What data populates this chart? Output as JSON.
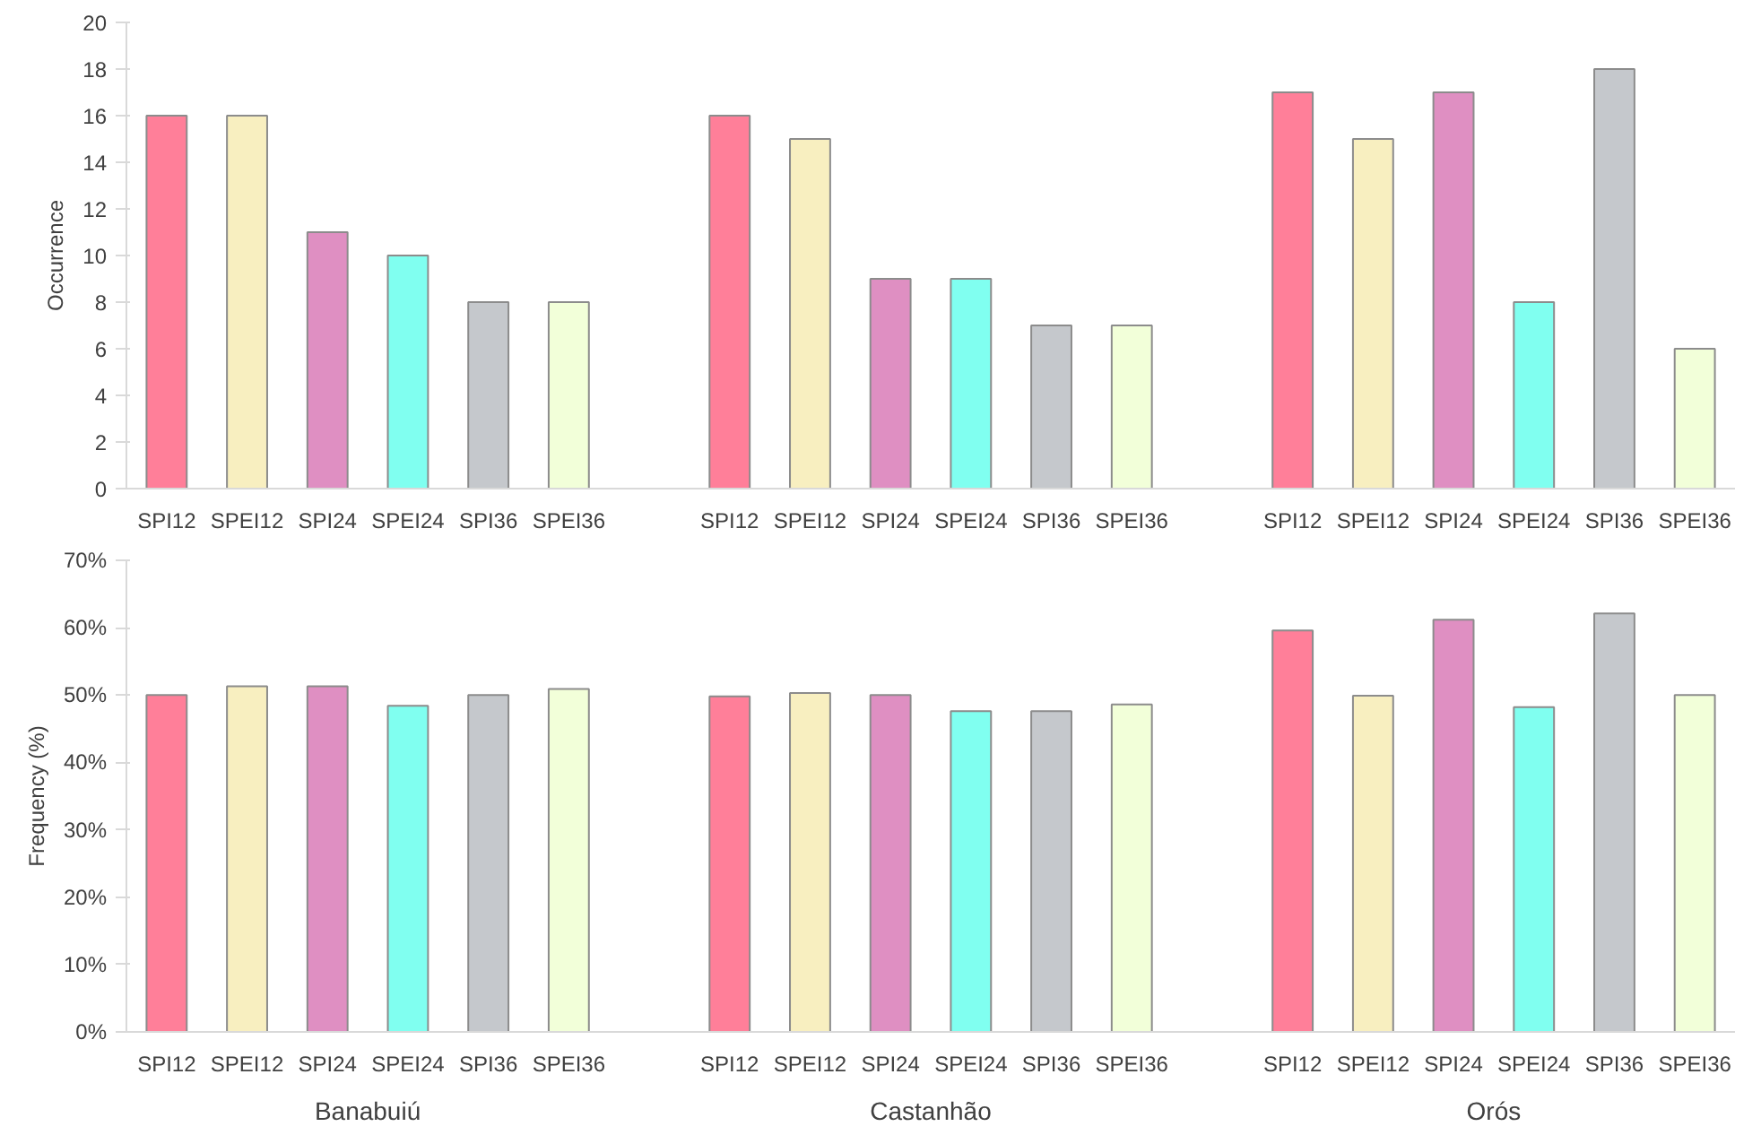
{
  "chart_data": [
    {
      "type": "bar",
      "ylabel": "Occurrence",
      "categories": [
        "SPI12",
        "SPEI12",
        "SPI24",
        "SPEI24",
        "SPI36",
        "SPEI36",
        null,
        "SPI12",
        "SPEI12",
        "SPI24",
        "SPEI24",
        "SPI36",
        "SPEI36",
        null,
        "SPI12",
        "SPEI12",
        "SPI24",
        "SPEI24",
        "SPI36",
        "SPEI36"
      ],
      "values": [
        16,
        16,
        11,
        10,
        8,
        8,
        null,
        16,
        15,
        9,
        9,
        7,
        7,
        null,
        17,
        15,
        17,
        8,
        18,
        6
      ],
      "colors": [
        "#ff7f99",
        "#f8efc0",
        "#df8fc2",
        "#80fff0",
        "#c5c8cc",
        "#f2ffd9",
        null,
        "#ff7f99",
        "#f8efc0",
        "#df8fc2",
        "#80fff0",
        "#c5c8cc",
        "#f2ffd9",
        null,
        "#ff7f99",
        "#f8efc0",
        "#df8fc2",
        "#80fff0",
        "#c5c8cc",
        "#f2ffd9"
      ],
      "ylim": [
        0,
        20
      ],
      "yticks": [
        0,
        2,
        4,
        6,
        8,
        10,
        12,
        14,
        16,
        18,
        20
      ],
      "grid": false
    },
    {
      "type": "bar",
      "ylabel": "Frequency (%)",
      "categories": [
        "SPI12",
        "SPEI12",
        "SPI24",
        "SPEI24",
        "SPI36",
        "SPEI36",
        null,
        "SPI12",
        "SPEI12",
        "SPI24",
        "SPEI24",
        "SPI36",
        "SPEI36",
        null,
        "SPI12",
        "SPEI12",
        "SPI24",
        "SPEI24",
        "SPI36",
        "SPEI36"
      ],
      "values": [
        50,
        51.3,
        51.3,
        48.4,
        50,
        50.9,
        null,
        49.8,
        50.3,
        50,
        47.6,
        47.6,
        48.6,
        null,
        59.6,
        49.9,
        61.2,
        48.2,
        62.1,
        50
      ],
      "colors": [
        "#ff7f99",
        "#f8efc0",
        "#df8fc2",
        "#80fff0",
        "#c5c8cc",
        "#f2ffd9",
        null,
        "#ff7f99",
        "#f8efc0",
        "#df8fc2",
        "#80fff0",
        "#c5c8cc",
        "#f2ffd9",
        null,
        "#ff7f99",
        "#f8efc0",
        "#df8fc2",
        "#80fff0",
        "#c5c8cc",
        "#f2ffd9"
      ],
      "ylim": [
        0,
        70
      ],
      "yticks": [
        {
          "value": 0,
          "label": "0%"
        },
        {
          "value": 10,
          "label": "10%"
        },
        {
          "value": 20,
          "label": "20%"
        },
        {
          "value": 30,
          "label": "30%"
        },
        {
          "value": 40,
          "label": "40%"
        },
        {
          "value": 50,
          "label": "50%"
        },
        {
          "value": 60,
          "label": "60%"
        },
        {
          "value": 70,
          "label": "70%"
        }
      ],
      "grid": false,
      "annotations": [
        "Banabuiú",
        "Castanhão",
        "Orós"
      ]
    }
  ]
}
